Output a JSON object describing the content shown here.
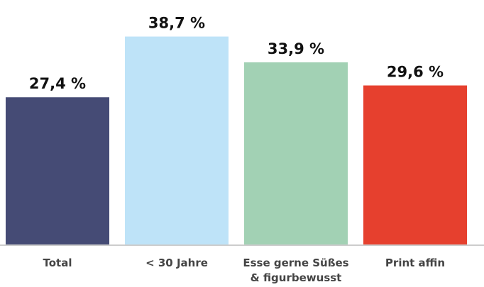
{
  "chart_data": {
    "type": "bar",
    "categories": [
      "Total",
      "< 30 Jahre",
      "Esse gerne Süßes\n& figurbewusst",
      "Print affin"
    ],
    "values": [
      27.4,
      38.7,
      33.9,
      29.6
    ],
    "value_labels": [
      "27,4 %",
      "38,7 %",
      "33,9 %",
      "29,6 %"
    ],
    "colors": [
      "#454b75",
      "#bee3f8",
      "#a2d1b4",
      "#e6402e"
    ],
    "ylim": [
      0,
      45.5
    ]
  }
}
